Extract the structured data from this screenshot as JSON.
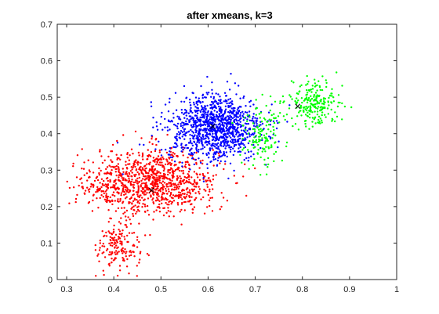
{
  "chart_data": {
    "type": "scatter",
    "title": "after xmeans, k=3",
    "xlabel": "",
    "ylabel": "",
    "xlim": [
      0.28,
      1.0
    ],
    "ylim": [
      0,
      0.7
    ],
    "x_ticks": [
      "0.3",
      "0.4",
      "0.5",
      "0.6",
      "0.7",
      "0.8",
      "0.9",
      "1"
    ],
    "x_tick_values": [
      0.3,
      0.4,
      0.5,
      0.6,
      0.7,
      0.8,
      0.9,
      1.0
    ],
    "y_ticks": [
      "0",
      "0.1",
      "0.2",
      "0.3",
      "0.4",
      "0.5",
      "0.6",
      "0.7"
    ],
    "y_tick_values": [
      0,
      0.1,
      0.2,
      0.3,
      0.4,
      0.5,
      0.6,
      0.7
    ],
    "grid": false,
    "box": true,
    "clusters": [
      {
        "color": "#ff0000",
        "centroid": [
          0.48,
          0.245
        ],
        "regions": [
          {
            "center": [
              0.49,
              0.27
            ],
            "spread": [
              0.065,
              0.045
            ],
            "count": 950
          },
          {
            "center": [
              0.41,
              0.09
            ],
            "spread": [
              0.022,
              0.035
            ],
            "count": 170
          },
          {
            "center": [
              0.38,
              0.26
            ],
            "spread": [
              0.03,
              0.03
            ],
            "count": 110
          }
        ]
      },
      {
        "color": "#0000ff",
        "centroid": [
          0.61,
          0.42
        ],
        "regions": [
          {
            "center": [
              0.615,
              0.415
            ],
            "spread": [
              0.05,
              0.045
            ],
            "count": 1100
          }
        ]
      },
      {
        "color": "#00ff00",
        "centroid": [
          0.79,
          0.475
        ],
        "regions": [
          {
            "center": [
              0.825,
              0.485
            ],
            "spread": [
              0.025,
              0.03
            ],
            "count": 230
          },
          {
            "center": [
              0.715,
              0.4
            ],
            "spread": [
              0.02,
              0.05
            ],
            "count": 140
          }
        ]
      }
    ]
  }
}
